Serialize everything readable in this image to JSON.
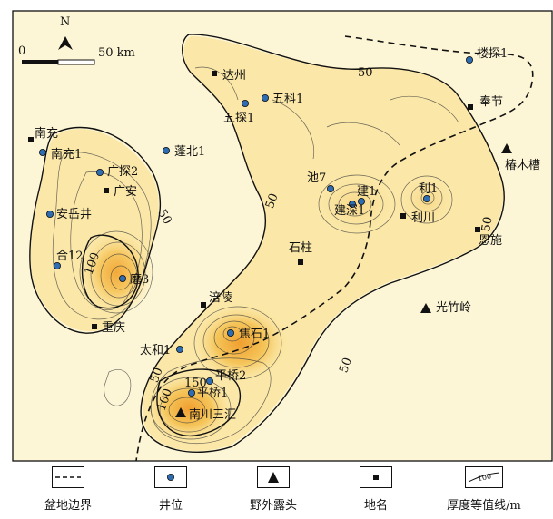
{
  "north_label": "N",
  "scale": {
    "zero": "0",
    "max": "50 km"
  },
  "contour_labels": [
    {
      "id": "c50-top",
      "text": "50"
    },
    {
      "id": "c50-left",
      "text": "50"
    },
    {
      "id": "c100-left",
      "text": "100"
    },
    {
      "id": "c50-mid",
      "text": "50"
    },
    {
      "id": "c50-right",
      "text": "50"
    },
    {
      "id": "c50-bottom",
      "text": "50"
    },
    {
      "id": "c50-sw",
      "text": "50"
    },
    {
      "id": "c100-sw",
      "text": "100"
    },
    {
      "id": "c150-sw",
      "text": "150"
    }
  ],
  "wells": [
    {
      "id": "loutan1",
      "name": "楼探1"
    },
    {
      "id": "wutan1",
      "name": "五探1"
    },
    {
      "id": "wuke1",
      "name": "五科1"
    },
    {
      "id": "nanchong1",
      "name": "南充1"
    },
    {
      "id": "pengbei1",
      "name": "蓬北1"
    },
    {
      "id": "guangtan2",
      "name": "广探2"
    },
    {
      "id": "chi7",
      "name": "池7"
    },
    {
      "id": "jian1",
      "name": "建1"
    },
    {
      "id": "jianshen1",
      "name": "建深1"
    },
    {
      "id": "li1",
      "name": "利1"
    },
    {
      "id": "anyuejing",
      "name": "安岳井"
    },
    {
      "id": "he12",
      "name": "合12"
    },
    {
      "id": "mo3",
      "name": "磨3"
    },
    {
      "id": "taihe1",
      "name": "太和1"
    },
    {
      "id": "jiaoshi1",
      "name": "焦石1"
    },
    {
      "id": "pingqiao2",
      "name": "平桥2"
    },
    {
      "id": "pingqiao1",
      "name": "平桥1"
    }
  ],
  "places": [
    {
      "id": "dazhou",
      "name": "达州"
    },
    {
      "id": "fengjie",
      "name": "奉节"
    },
    {
      "id": "nanchong",
      "name": "南充"
    },
    {
      "id": "guangan",
      "name": "广安"
    },
    {
      "id": "lichuan",
      "name": "利川"
    },
    {
      "id": "enshi",
      "name": "恩施"
    },
    {
      "id": "shizhu",
      "name": "石柱"
    },
    {
      "id": "fuling",
      "name": "涪陵"
    },
    {
      "id": "chongqing",
      "name": "重庆"
    }
  ],
  "outcrops": [
    {
      "id": "chunmucao",
      "name": "椿木槽"
    },
    {
      "id": "guangzhuling",
      "name": "光竹岭"
    },
    {
      "id": "nanchuan",
      "name": "南川三汇"
    }
  ],
  "legend": [
    {
      "id": "basin-boundary",
      "label": "盆地边界"
    },
    {
      "id": "well",
      "label": "井位"
    },
    {
      "id": "outcrop",
      "label": "野外露头"
    },
    {
      "id": "place",
      "label": "地名"
    },
    {
      "id": "isopach",
      "label": "厚度等值线/m",
      "sample": "100"
    }
  ]
}
